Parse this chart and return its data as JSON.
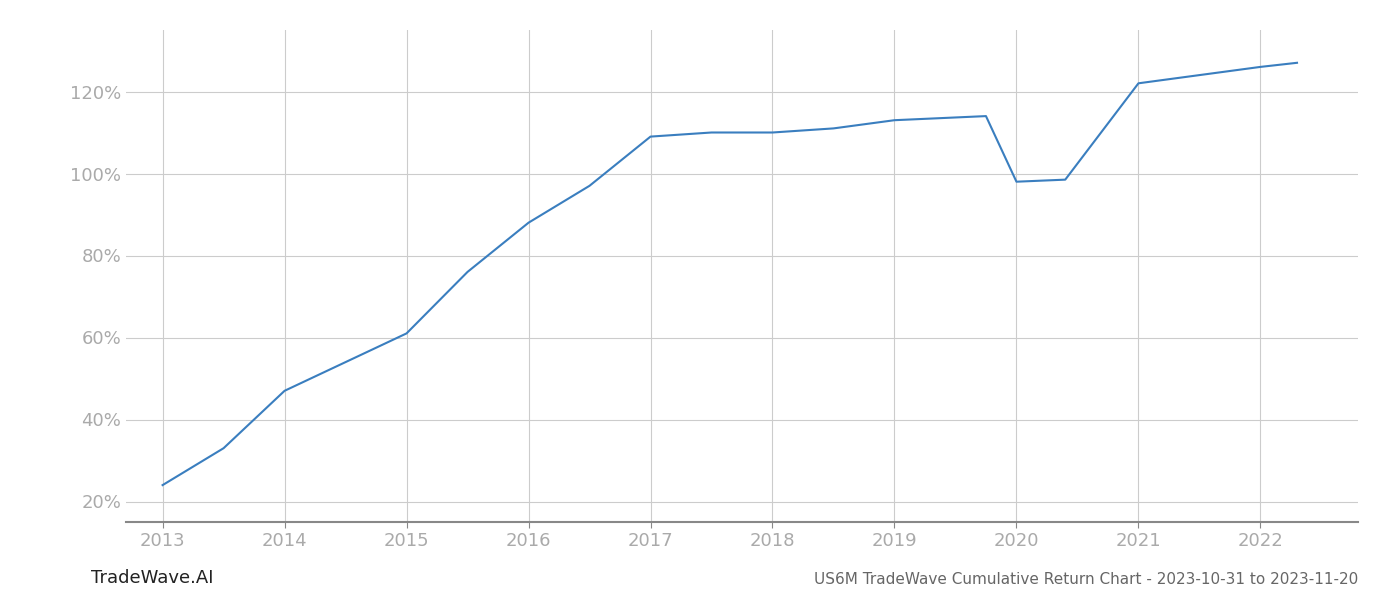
{
  "x": [
    2013,
    2013.5,
    2014,
    2014.5,
    2015,
    2015.5,
    2016,
    2016.5,
    2017,
    2017.5,
    2018,
    2018.5,
    2019,
    2019.75,
    2020,
    2020.4,
    2021,
    2021.5,
    2022,
    2022.3
  ],
  "y": [
    24,
    33,
    47,
    54,
    61,
    76,
    88,
    97,
    109,
    110,
    110,
    111,
    113,
    114,
    98,
    98.5,
    122,
    124,
    126,
    127
  ],
  "line_color": "#3a7ebf",
  "line_width": 1.5,
  "background_color": "#ffffff",
  "grid_color": "#cccccc",
  "title": "US6M TradeWave Cumulative Return Chart - 2023-10-31 to 2023-11-20",
  "watermark": "TradeWave.AI",
  "xlim": [
    2012.7,
    2022.8
  ],
  "ylim": [
    15,
    135
  ],
  "xticks": [
    2013,
    2014,
    2015,
    2016,
    2017,
    2018,
    2019,
    2020,
    2021,
    2022
  ],
  "yticks": [
    20,
    40,
    60,
    80,
    100,
    120
  ],
  "tick_label_color": "#aaaaaa",
  "axis_color": "#888888",
  "title_color": "#666666",
  "watermark_color": "#222222",
  "title_fontsize": 11,
  "watermark_fontsize": 13,
  "tick_fontsize": 13
}
